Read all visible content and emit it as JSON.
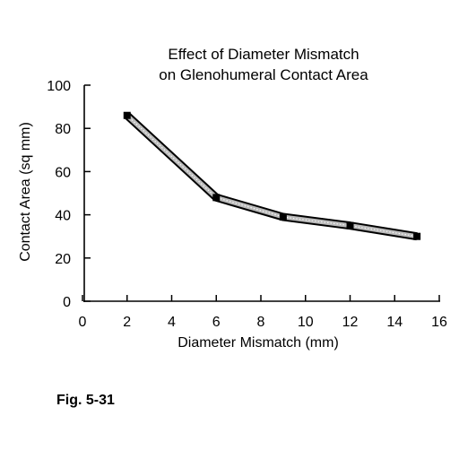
{
  "figure_caption": "Fig. 5-31",
  "chart_data": {
    "type": "line",
    "title": [
      "Effect of Diameter Mismatch",
      "on Glenohumeral Contact Area"
    ],
    "xlabel": "Diameter Mismatch (mm)",
    "ylabel": "Contact Area (sq mm)",
    "xlim": [
      0,
      16
    ],
    "ylim": [
      0,
      100
    ],
    "xticks": [
      0,
      2,
      4,
      6,
      8,
      10,
      12,
      14,
      16
    ],
    "yticks": [
      0,
      20,
      40,
      60,
      80,
      100
    ],
    "grid": false,
    "legend": "none",
    "series": [
      {
        "x": [
          2,
          6,
          9,
          12,
          15
        ],
        "y": [
          86,
          48,
          39,
          35,
          30
        ]
      }
    ],
    "line_color": "#000000",
    "line_fill": "#bbbbbb"
  }
}
